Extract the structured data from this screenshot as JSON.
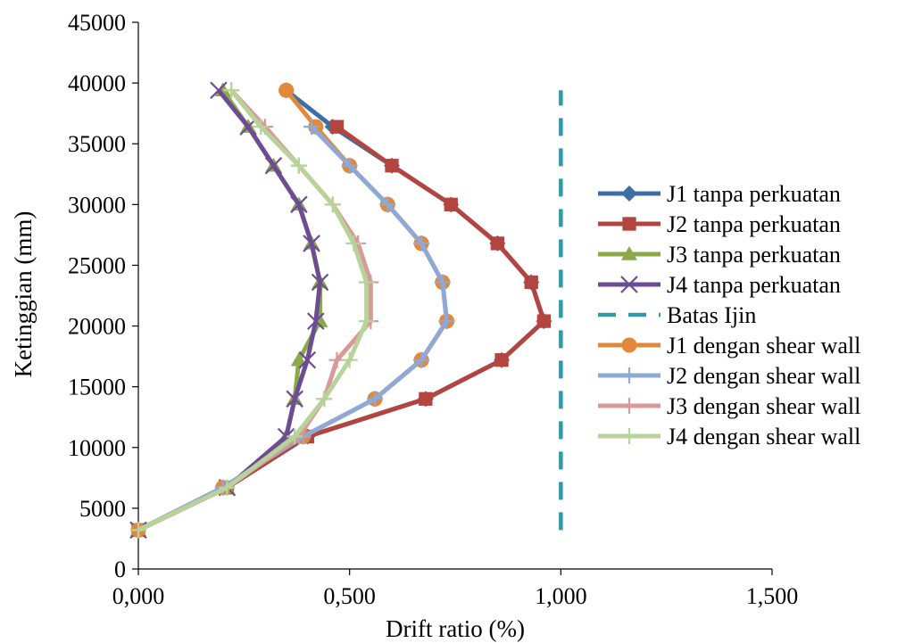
{
  "chart_data": {
    "type": "line",
    "xlabel": "Drift ratio (%)",
    "ylabel": "Ketinggian (mm)",
    "xlim": [
      0,
      1.5
    ],
    "ylim": [
      0,
      45000
    ],
    "x_ticks": [
      "0,000",
      "0,500",
      "1,000",
      "1,500"
    ],
    "y_ticks": [
      "0",
      "5000",
      "10000",
      "15000",
      "20000",
      "25000",
      "30000",
      "35000",
      "40000",
      "45000"
    ],
    "grid": false,
    "legend_position": "right",
    "series": [
      {
        "name": "J1 tanpa perkuatan",
        "color": "#3d6fa6",
        "marker": "diamond",
        "dash": "solid",
        "points": [
          [
            0.0,
            3200
          ],
          [
            0.21,
            6700
          ],
          [
            0.4,
            10900
          ],
          [
            0.68,
            14000
          ],
          [
            0.86,
            17200
          ],
          [
            0.96,
            20400
          ],
          [
            0.93,
            23600
          ],
          [
            0.85,
            26800
          ],
          [
            0.74,
            30000
          ],
          [
            0.6,
            33200
          ],
          [
            0.46,
            36400
          ],
          [
            0.35,
            39400
          ]
        ]
      },
      {
        "name": "J2 tanpa perkuatan",
        "color": "#b34440",
        "marker": "square",
        "dash": "solid",
        "points": [
          [
            0.0,
            3200
          ],
          [
            0.21,
            6700
          ],
          [
            0.4,
            10900
          ],
          [
            0.68,
            14000
          ],
          [
            0.86,
            17200
          ],
          [
            0.96,
            20400
          ],
          [
            0.93,
            23600
          ],
          [
            0.85,
            26800
          ],
          [
            0.74,
            30000
          ],
          [
            0.6,
            33200
          ],
          [
            0.47,
            36400
          ]
        ]
      },
      {
        "name": "J3 tanpa perkuatan",
        "color": "#8aaa4a",
        "marker": "triangle",
        "dash": "solid",
        "points": [
          [
            0.0,
            3200
          ],
          [
            0.21,
            6700
          ],
          [
            0.35,
            10900
          ],
          [
            0.37,
            14000
          ],
          [
            0.38,
            17200
          ],
          [
            0.43,
            20400
          ],
          [
            0.43,
            23600
          ],
          [
            0.41,
            26800
          ],
          [
            0.38,
            30000
          ],
          [
            0.32,
            33200
          ],
          [
            0.26,
            36400
          ],
          [
            0.2,
            39400
          ]
        ]
      },
      {
        "name": "J4 tanpa perkuatan",
        "color": "#6e4c94",
        "marker": "x",
        "dash": "solid",
        "points": [
          [
            0.0,
            3200
          ],
          [
            0.21,
            6700
          ],
          [
            0.35,
            10900
          ],
          [
            0.37,
            14000
          ],
          [
            0.4,
            17200
          ],
          [
            0.42,
            20400
          ],
          [
            0.43,
            23600
          ],
          [
            0.41,
            26800
          ],
          [
            0.38,
            30000
          ],
          [
            0.32,
            33200
          ],
          [
            0.26,
            36400
          ],
          [
            0.19,
            39400
          ]
        ]
      },
      {
        "name": "Batas Ijin",
        "color": "#3399aa",
        "marker": "none",
        "dash": "dash",
        "points": [
          [
            1.0,
            3200
          ],
          [
            1.0,
            39400
          ]
        ]
      },
      {
        "name": "J1 dengan shear wall",
        "color": "#e1883b",
        "marker": "circle",
        "dash": "solid",
        "points": [
          [
            0.0,
            3200
          ],
          [
            0.2,
            6700
          ],
          [
            0.39,
            10900
          ],
          [
            0.56,
            14000
          ],
          [
            0.67,
            17200
          ],
          [
            0.73,
            20400
          ],
          [
            0.72,
            23600
          ],
          [
            0.67,
            26800
          ],
          [
            0.59,
            30000
          ],
          [
            0.5,
            33200
          ],
          [
            0.42,
            36400
          ],
          [
            0.35,
            39400
          ]
        ]
      },
      {
        "name": "J2 dengan shear wall",
        "color": "#8ea9d6",
        "marker": "plus",
        "dash": "solid",
        "points": [
          [
            0.0,
            3200
          ],
          [
            0.2,
            6700
          ],
          [
            0.39,
            10900
          ],
          [
            0.56,
            14000
          ],
          [
            0.67,
            17200
          ],
          [
            0.73,
            20400
          ],
          [
            0.72,
            23600
          ],
          [
            0.67,
            26800
          ],
          [
            0.59,
            30000
          ],
          [
            0.5,
            33200
          ],
          [
            0.41,
            36400
          ]
        ]
      },
      {
        "name": "J3 dengan shear wall",
        "color": "#d79a98",
        "marker": "plus",
        "dash": "solid",
        "points": [
          [
            0.0,
            3200
          ],
          [
            0.21,
            6700
          ],
          [
            0.38,
            10900
          ],
          [
            0.44,
            14000
          ],
          [
            0.47,
            17200
          ],
          [
            0.55,
            20400
          ],
          [
            0.55,
            23600
          ],
          [
            0.52,
            26800
          ],
          [
            0.46,
            30000
          ],
          [
            0.38,
            33200
          ],
          [
            0.3,
            36400
          ],
          [
            0.22,
            39400
          ]
        ]
      },
      {
        "name": "J4 dengan shear wall",
        "color": "#b8d39a",
        "marker": "plus",
        "dash": "solid",
        "points": [
          [
            0.0,
            3200
          ],
          [
            0.21,
            6700
          ],
          [
            0.37,
            10900
          ],
          [
            0.44,
            14000
          ],
          [
            0.5,
            17200
          ],
          [
            0.54,
            20400
          ],
          [
            0.54,
            23600
          ],
          [
            0.51,
            26800
          ],
          [
            0.46,
            30000
          ],
          [
            0.38,
            33200
          ],
          [
            0.29,
            36400
          ],
          [
            0.22,
            39400
          ]
        ]
      }
    ]
  }
}
